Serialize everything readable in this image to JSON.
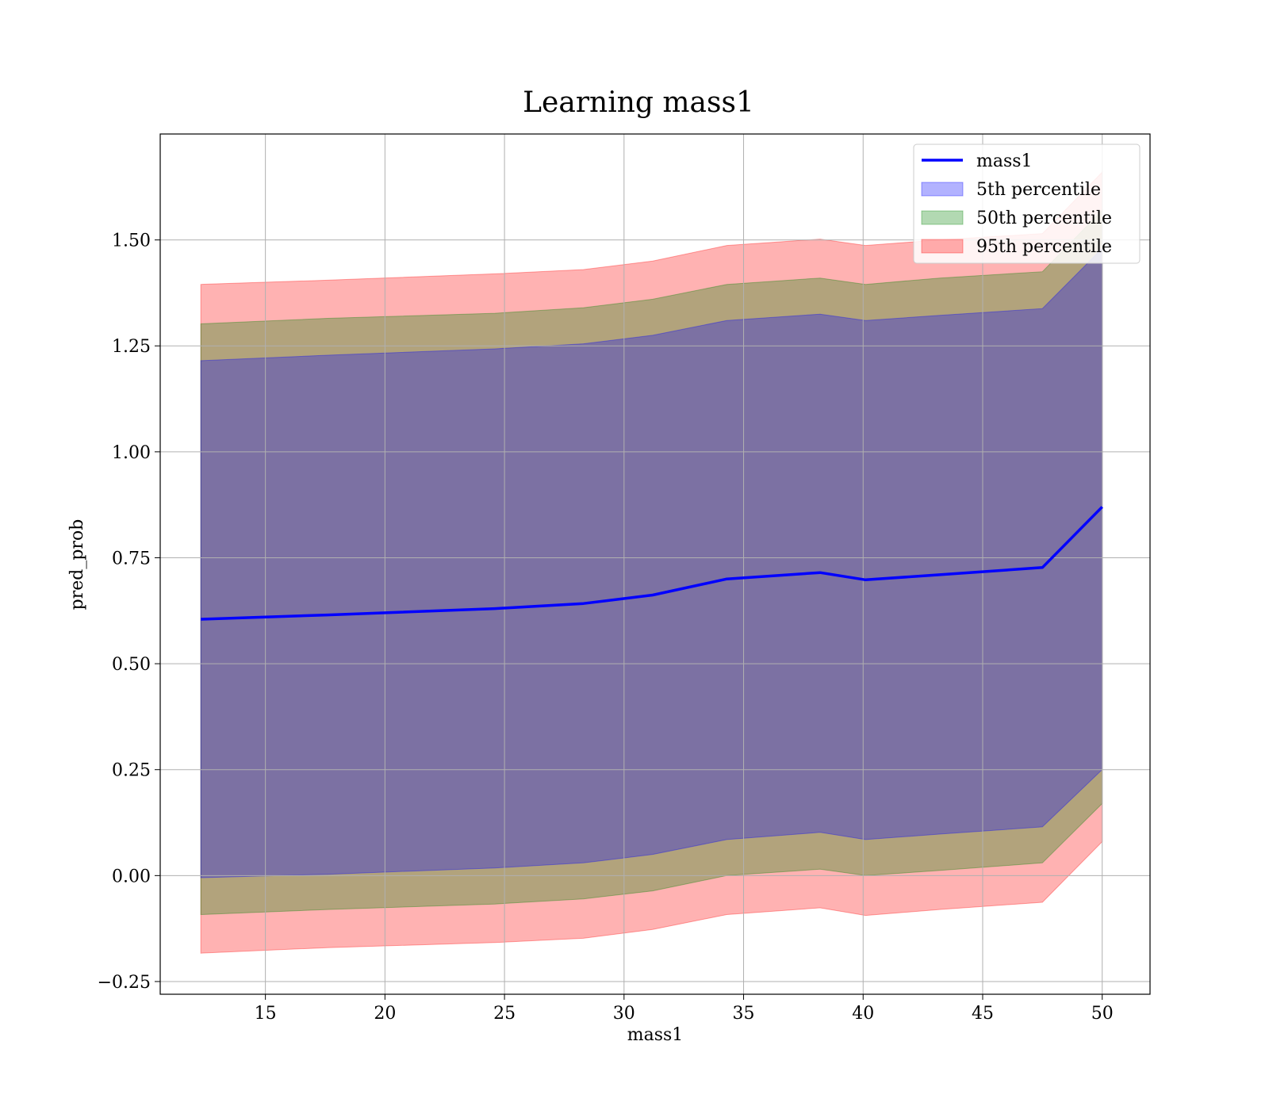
{
  "chart_data": {
    "type": "area",
    "title": "Learning mass1",
    "xlabel": "mass1",
    "ylabel": "pred_prob",
    "xlim": [
      10.6,
      52
    ],
    "ylim": [
      -0.28,
      1.75
    ],
    "grid": true,
    "legend_position": "top-right",
    "x_ticks": [
      15,
      20,
      25,
      30,
      35,
      40,
      45,
      50
    ],
    "x_tick_labels": [
      "15",
      "20",
      "25",
      "30",
      "35",
      "40",
      "45",
      "50"
    ],
    "y_ticks": [
      -0.25,
      0.0,
      0.25,
      0.5,
      0.75,
      1.0,
      1.25,
      1.5
    ],
    "y_tick_labels": [
      "−0.25",
      "0.00",
      "0.25",
      "0.50",
      "0.75",
      "1.00",
      "1.25",
      "1.50"
    ],
    "x": [
      12.3,
      17.6,
      24.6,
      28.3,
      31.2,
      34.3,
      38.2,
      40.1,
      43.2,
      47.5,
      50.0
    ],
    "line": {
      "name": "mass1",
      "color": "#0000ff",
      "values": [
        0.605,
        0.615,
        0.63,
        0.642,
        0.662,
        0.7,
        0.715,
        0.698,
        0.71,
        0.727,
        0.87
      ]
    },
    "bands": [
      {
        "name": "5th percentile",
        "color": "#0000ff",
        "lower": [
          -0.005,
          0.003,
          0.018,
          0.03,
          0.05,
          0.085,
          0.102,
          0.085,
          0.098,
          0.115,
          0.25
        ],
        "upper": [
          1.215,
          1.228,
          1.243,
          1.255,
          1.275,
          1.31,
          1.325,
          1.31,
          1.322,
          1.338,
          1.48
        ]
      },
      {
        "name": "50th percentile",
        "color": "#008000",
        "lower": [
          -0.092,
          -0.08,
          -0.067,
          -0.055,
          -0.036,
          0.0,
          0.015,
          0.0,
          0.012,
          0.03,
          0.17
        ],
        "upper": [
          1.302,
          1.315,
          1.327,
          1.34,
          1.36,
          1.395,
          1.41,
          1.395,
          1.41,
          1.425,
          1.57
        ]
      },
      {
        "name": "95th percentile",
        "color": "#ff0000",
        "lower": [
          -0.183,
          -0.17,
          -0.158,
          -0.148,
          -0.127,
          -0.092,
          -0.076,
          -0.094,
          -0.08,
          -0.063,
          0.08
        ],
        "upper": [
          1.395,
          1.405,
          1.42,
          1.43,
          1.45,
          1.487,
          1.502,
          1.487,
          1.5,
          1.515,
          1.66
        ]
      }
    ],
    "legend": [
      {
        "label": "mass1",
        "kind": "line",
        "color": "#0000ff"
      },
      {
        "label": "5th percentile",
        "kind": "patch",
        "color": "#0000ff"
      },
      {
        "label": "50th percentile",
        "kind": "patch",
        "color": "#008000"
      },
      {
        "label": "95th percentile",
        "kind": "patch",
        "color": "#ff0000"
      }
    ]
  }
}
